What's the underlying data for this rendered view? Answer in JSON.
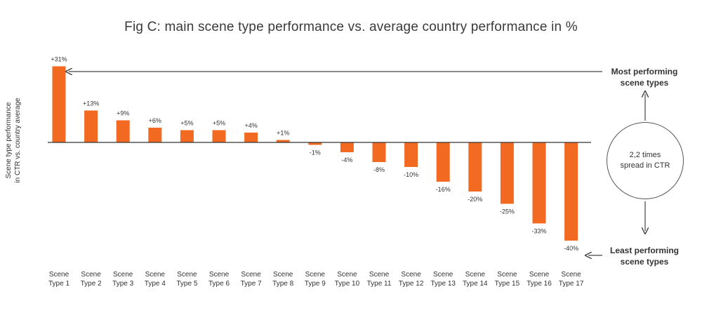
{
  "chart_data": {
    "type": "bar",
    "title": "Fig C: main scene type performance vs. average country performance in %",
    "ylabel": [
      "Scene type performance",
      "in CTR vs. country average"
    ],
    "xlabel": "",
    "categories": [
      [
        "Scene",
        "Type 1"
      ],
      [
        "Scene",
        "Type 2"
      ],
      [
        "Scene",
        "Type 3"
      ],
      [
        "Scene",
        "Type 4"
      ],
      [
        "Scene",
        "Type 5"
      ],
      [
        "Scene",
        "Type 6"
      ],
      [
        "Scene",
        "Type 7"
      ],
      [
        "Scene",
        "Type 8"
      ],
      [
        "Scene",
        "Type 9"
      ],
      [
        "Scene",
        "Type 10"
      ],
      [
        "Scene",
        "Type 11"
      ],
      [
        "Scene",
        "Type 12"
      ],
      [
        "Scene",
        "Type 13"
      ],
      [
        "Scene",
        "Type 14"
      ],
      [
        "Scene",
        "Type 15"
      ],
      [
        "Scene",
        "Type 16"
      ],
      [
        "Scene",
        "Type 17"
      ]
    ],
    "values": [
      31,
      13,
      9,
      6,
      5,
      5,
      4,
      1,
      -1,
      -4,
      -8,
      -10,
      -16,
      -20,
      -25,
      -33,
      -40
    ],
    "labels": [
      "+31%",
      "+13%",
      "+9%",
      "+6%",
      "+5%",
      "+5%",
      "+4%",
      "+1%",
      "-1%",
      "-4%",
      "-8%",
      "-10%",
      "-16%",
      "-20%",
      "-25%",
      "-33%",
      "-40%"
    ],
    "ylim": [
      -42,
      33
    ],
    "bar_color": "#f26a21",
    "grid": false
  },
  "annotations": {
    "top_label": [
      "Most performing",
      "scene types"
    ],
    "bottom_label": [
      "Least performing",
      "scene types"
    ],
    "spread_label": [
      "2,2 times",
      "spread in CTR"
    ]
  },
  "colors": {
    "bar": "#f26a21",
    "axis": "#333333",
    "arrow": "#444444"
  }
}
